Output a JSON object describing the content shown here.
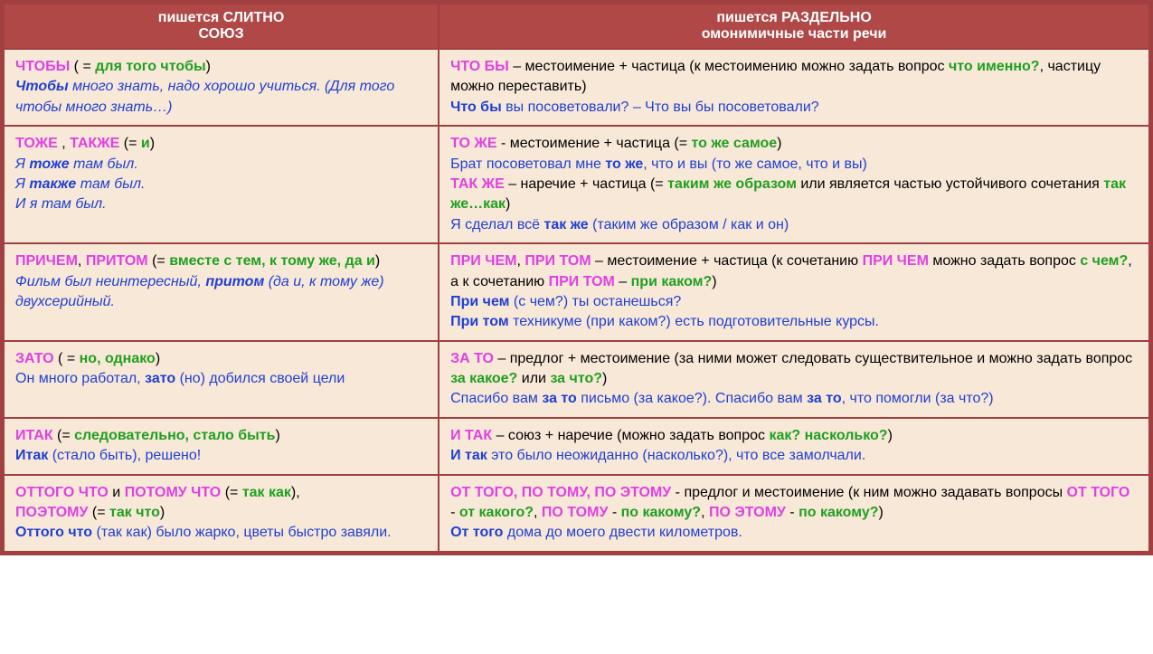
{
  "header": {
    "left_line1": "пишется СЛИТНО",
    "left_line2": "СОЮЗ",
    "right_line1": "пишется РАЗДЕЛЬНО",
    "right_line2": "омонимичные части речи"
  },
  "rows": [
    {
      "left": {
        "l1_pink": "ЧТОБЫ",
        "l1_black": " ( = ",
        "l1_green": "для того чтобы",
        "l1_black2": ")",
        "l2_blueitalicbold": "Чтобы",
        "l2_blueitalic": " много знать, надо хорошо учиться. (Для того чтобы много знать…)"
      },
      "right": {
        "r1_pink": "ЧТО БЫ",
        "r1_black": " – местоимение + частица (к местоимению можно задать вопрос ",
        "r1_green": "что именно?",
        "r1_black2": ", частицу можно переставить)",
        "r2_bluebold": "Что бы",
        "r2_blue": " вы посоветовали? – Что вы бы посоветовали?"
      }
    },
    {
      "left": {
        "l1_pink": "ТОЖЕ",
        "l1_black": " , ",
        "l1_pink2": "ТАКЖЕ",
        "l1_black2": " (= ",
        "l1_green": "и",
        "l1_black3": ")",
        "l2_blueitalic": "Я ",
        "l2_blueitalicbold": "тоже",
        "l2_blueitalic2": " там был.",
        "l3_blueitalic": "Я ",
        "l3_blueitalicbold": "также",
        "l3_blueitalic2": " там был.",
        "l4_blueitalic": "И я там был."
      },
      "right": {
        "r1_pink": "ТО ЖЕ",
        "r1_black": " -  местоимение + частица (= ",
        "r1_green": "то же самое",
        "r1_black2": ")",
        "r2_blue": "Брат посоветовал мне ",
        "r2_bluebold": "то же",
        "r2_blue2": ", что и вы (то же самое, что и вы)",
        "r3_pink": "ТАК ЖЕ",
        "r3_black": " – наречие + частица (= ",
        "r3_green": "таким же образом",
        "r3_black2": " или является частью устойчивого сочетания ",
        "r3_green2": "так же…как",
        "r3_black3": ")",
        "r4_blue": "Я сделал всё ",
        "r4_bluebold": "так же",
        "r4_blue2": " (таким же образом / как и он)"
      }
    },
    {
      "left": {
        "l1_pink": "ПРИЧЕМ",
        "l1_black": ", ",
        "l1_pink2": "ПРИТОМ",
        "l1_black2": " (= ",
        "l1_green": "вместе с тем, к тому же, да и",
        "l1_black3": ")",
        "l2_blueitalic": "Фильм был неинтересный, ",
        "l2_blueitalicbold": "притом",
        "l2_blueitalic2": " (да и, к тому же) двухсерийный."
      },
      "right": {
        "r1_pink": "ПРИ ЧЕМ",
        "r1_black": ", ",
        "r1_pink2": "ПРИ ТОМ",
        "r1_black2": " – местоимение + частица (к сочетанию ",
        "r1_pink3": "ПРИ ЧЕМ",
        "r1_black3": " можно задать вопрос ",
        "r1_green": "с чем?",
        "r1_black4": ", а к сочетанию ",
        "r1_pink4": "ПРИ ТОМ",
        "r1_black5": " – ",
        "r1_green2": "при каком?",
        "r1_black6": ")",
        "r2_bluebold": "При чем",
        "r2_blue": " (с чем?) ты останешься?",
        "r3_bluebold": "При том",
        "r3_blue": " техникуме (при каком?) есть подготовительные курсы."
      }
    },
    {
      "left": {
        "l1_pink": "ЗАТО",
        "l1_black": " ( = ",
        "l1_green": "но, однако",
        "l1_black2": ")",
        "l2_blue": "Он много работал, ",
        "l2_bluebold": "зато",
        "l2_blue2": " (но) добился своей цели"
      },
      "right": {
        "r1_pink": "ЗА ТО",
        "r1_black": " – предлог + местоимение (за ними может следовать существительное и можно задать вопрос ",
        "r1_green": "за какое?",
        "r1_black2": " или ",
        "r1_green2": "за что?",
        "r1_black3": ")",
        "r2_blue": "Спасибо вам ",
        "r2_bluebold": "за то",
        "r2_blue2": " письмо (за какое?). Спасибо вам ",
        "r2_bluebold2": "за то",
        "r2_blue3": ", что помогли (за что?)"
      }
    },
    {
      "left": {
        "l1_pink": "ИТАК",
        "l1_black": " (= ",
        "l1_green": "следовательно, стало быть",
        "l1_black2": ")",
        "l2_bluebold": "Итак",
        "l2_blue": " (стало быть), решено!"
      },
      "right": {
        "r1_pink": "И ТАК",
        "r1_black": " – союз + наречие (можно задать вопрос ",
        "r1_green": "как? насколько?",
        "r1_black2": ")",
        "r2_bluebold": "И так",
        "r2_blue": " это было неожиданно (насколько?), что все замолчали."
      }
    },
    {
      "left": {
        "l1_pink": "ОТТОГО ЧТО",
        "l1_black": " и ",
        "l1_pink2": "ПОТОМУ ЧТО",
        "l1_black2": " (= ",
        "l1_green": "так как",
        "l1_black3": "), ",
        "l2_pink": "ПОЭТОМУ",
        "l2_black": " (= ",
        "l2_green": "так что",
        "l2_black2": ")",
        "l3_bluebold": "Оттого что",
        "l3_blue": " (так как) было жарко, цветы быстро завяли."
      },
      "right": {
        "r1_pink": "ОТ ТОГО, ПО ТОМУ, ПО ЭТОМУ",
        "r1_black": " -  предлог и местоимение (к ним можно задавать вопросы ",
        "r1_pink2": "ОТ ТОГО",
        "r1_black2": " - ",
        "r1_green": "от какого?",
        "r1_black3": ", ",
        "r1_pink3": "ПО ТОМУ",
        "r1_black4": " - ",
        "r1_green2": "по какому?",
        "r1_black5": ", ",
        "r1_pink4": "ПО ЭТОМУ",
        "r1_black6": " - ",
        "r1_green3": "по какому?",
        "r1_black7": ")",
        "r2_bluebold": "От того",
        "r2_blue": " дома до моего двести километров."
      }
    }
  ],
  "colors": {
    "header_bg": "#b04848",
    "border": "#a04040",
    "cell_bg": "#f8e8d8",
    "pink": "#e040e0",
    "green": "#20a020",
    "blue": "#2040d0"
  }
}
